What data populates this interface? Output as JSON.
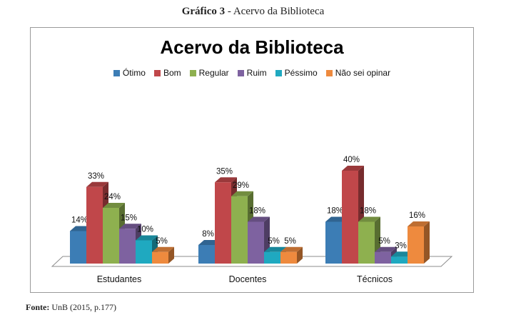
{
  "caption": {
    "label": "Gráfico 3",
    "separator": " - ",
    "text": "Acervo da Biblioteca"
  },
  "source": {
    "label": "Fonte:",
    "text": " UnB (2015, p.177)"
  },
  "chart_data": {
    "type": "bar",
    "title": "Acervo da Biblioteca",
    "categories": [
      "Estudantes",
      "Docentes",
      "Técnicos"
    ],
    "series": [
      {
        "name": "Ótimo",
        "color": "#3C7DB5",
        "values": [
          14,
          8,
          18
        ],
        "labels": [
          "14%",
          "8%",
          "18%"
        ]
      },
      {
        "name": "Bom",
        "color": "#C0474A",
        "values": [
          33,
          35,
          40
        ],
        "labels": [
          "33%",
          "35%",
          "40%"
        ]
      },
      {
        "name": "Regular",
        "color": "#8EB04F",
        "values": [
          24,
          29,
          18
        ],
        "labels": [
          "24%",
          "29%",
          "18%"
        ]
      },
      {
        "name": "Ruim",
        "color": "#7E62A0",
        "values": [
          15,
          18,
          5
        ],
        "labels": [
          "15%",
          "18%",
          "5%"
        ]
      },
      {
        "name": "Péssimo",
        "color": "#1FA9C0",
        "values": [
          10,
          5,
          3
        ],
        "labels": [
          "10%",
          "5%",
          "3%"
        ]
      },
      {
        "name": "Não sei opinar",
        "color": "#EE8A3E",
        "values": [
          5,
          5,
          16
        ],
        "labels": [
          "5%",
          "5%",
          "16%"
        ]
      }
    ],
    "ylim": [
      0,
      45
    ],
    "grid": false,
    "legend_position": "top",
    "three_d": true
  }
}
